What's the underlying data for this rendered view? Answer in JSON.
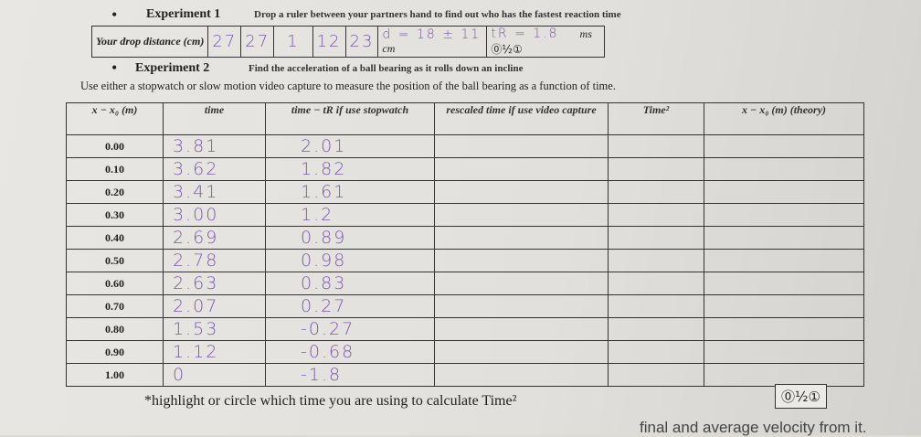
{
  "experiment1": {
    "title": "Experiment 1",
    "description": "Drop a ruler between your partners hand to find out who has the fastest reaction time",
    "label": "Your drop distance (cm)",
    "drops": [
      "27",
      "27",
      "1",
      "12",
      "23"
    ],
    "distance": "d = 18 ± 11",
    "distance_unit": "cm",
    "reaction_time": "tR = 1.8",
    "reaction_unit": "ms",
    "score": "⓪½①"
  },
  "experiment2": {
    "title": "Experiment 2",
    "description": "Find the acceleration of a ball bearing as it rolls down an incline",
    "instruction": "Use either a stopwatch or slow motion video capture to measure the position of the ball bearing as a function of time.",
    "table": {
      "headers": [
        "x − x₀ (m)",
        "time",
        "time − tR if use stopwatch",
        "rescaled time if use video capture",
        "Time²",
        "x − x₀ (m) (theory)"
      ],
      "rows": [
        [
          "0.00",
          "3.81",
          "2.01"
        ],
        [
          "0.10",
          "3.62",
          "1.82"
        ],
        [
          "0.20",
          "3.41",
          "1.61"
        ],
        [
          "0.30",
          "3.00",
          "1.2"
        ],
        [
          "0.40",
          "2.69",
          "0.89"
        ],
        [
          "0.50",
          "2.78",
          "0.98"
        ],
        [
          "0.60",
          "2.63",
          "0.83"
        ],
        [
          "0.70",
          "2.07",
          "0.27"
        ],
        [
          "0.80",
          "1.53",
          "-0.27"
        ],
        [
          "0.90",
          "1.12",
          "-0.68"
        ],
        [
          "1.00",
          "0",
          "-1.8"
        ]
      ]
    },
    "footnote": "*highlight or circle which time you are using to calculate Time²",
    "score": "⓪½①"
  },
  "bottom_text": "final and average velocity from it."
}
